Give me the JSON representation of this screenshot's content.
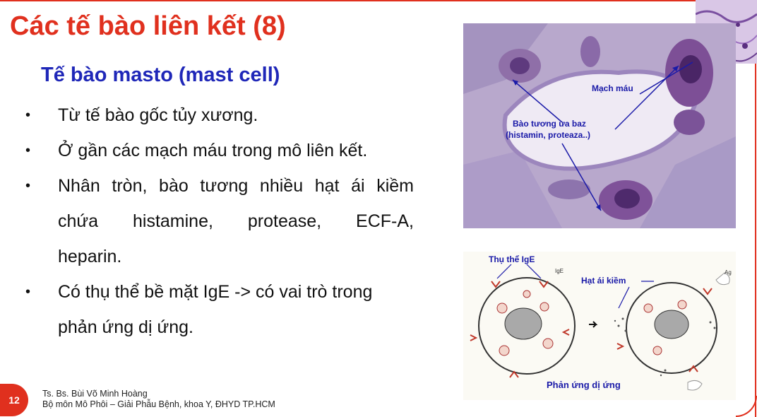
{
  "slide": {
    "title": "Các tế bào liên kết (8)",
    "subtitle": "Tế bào masto (mast cell)",
    "bullets": [
      {
        "lines": [
          "Từ tế bào gốc tủy xương."
        ]
      },
      {
        "lines": [
          "Ở gần các mạch máu trong mô liên kết."
        ]
      },
      {
        "lines": [
          "Nhân tròn, bào tương nhiều hạt ái kiềm",
          "chứa  histamine,  protease,  ECF-A,",
          "heparin."
        ]
      },
      {
        "lines": [
          "Có thụ thể bề mặt IgE -> có vai trò trong",
          "phản ứng dị ứng."
        ]
      }
    ],
    "bullet_symbol": "•",
    "page_number": "12",
    "footer_author": "Ts. Bs. Bùi Võ Minh Hoàng",
    "footer_affiliation": "Bộ môn Mô Phôi – Giải Phẫu Bệnh, khoa Y, ĐHYD TP.HCM"
  },
  "micrograph": {
    "label_vessel": "Mạch máu",
    "label_cytoplasm_1": "Bào tương ưa baz",
    "label_cytoplasm_2": "(histamin, proteaza..)"
  },
  "diagram": {
    "label_receptor": "Thụ thể IgE",
    "label_ige": "IgE",
    "label_granules": "Hạt ái kiềm",
    "label_ag": "Ag",
    "caption": "Phản ứng dị ứng"
  },
  "colors": {
    "accent_red": "#e0301e",
    "subtitle_blue": "#1f27b8",
    "label_blue": "#1a1aa8"
  }
}
